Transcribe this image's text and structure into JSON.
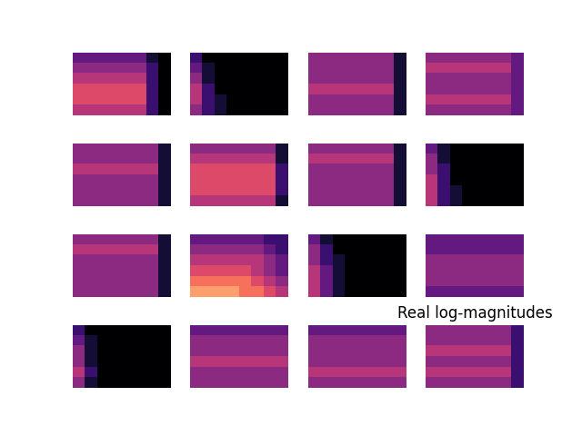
{
  "chart_data": [
    {
      "type": "heatmap",
      "tick_labels": false,
      "value_range": [
        0,
        10
      ],
      "cells": [
        [
          3,
          3,
          3,
          3,
          3,
          3,
          1,
          0
        ],
        [
          4,
          4,
          4,
          4,
          4,
          4,
          2,
          0
        ],
        [
          5,
          5,
          5,
          5,
          5,
          5,
          2,
          0
        ],
        [
          6,
          6,
          6,
          6,
          6,
          6,
          2,
          0
        ],
        [
          6,
          6,
          6,
          6,
          6,
          6,
          2,
          0
        ],
        [
          5,
          5,
          5,
          5,
          5,
          5,
          2,
          0
        ]
      ]
    },
    {
      "type": "heatmap",
      "tick_labels": false,
      "value_range": [
        0,
        10
      ],
      "cells": [
        [
          2,
          0,
          0,
          0,
          0,
          0,
          0,
          0
        ],
        [
          3,
          1,
          0,
          0,
          0,
          0,
          0,
          0
        ],
        [
          4,
          1,
          0,
          0,
          0,
          0,
          0,
          0
        ],
        [
          5,
          2,
          0,
          0,
          0,
          0,
          0,
          0
        ],
        [
          5,
          2,
          1,
          0,
          0,
          0,
          0,
          0
        ],
        [
          4,
          2,
          1,
          0,
          0,
          0,
          0,
          0
        ]
      ]
    },
    {
      "type": "heatmap",
      "tick_labels": false,
      "value_range": [
        0,
        10
      ],
      "cells": [
        [
          4,
          4,
          4,
          4,
          4,
          4,
          4,
          1
        ],
        [
          4,
          4,
          4,
          4,
          4,
          4,
          4,
          1
        ],
        [
          4,
          4,
          4,
          4,
          4,
          4,
          4,
          1
        ],
        [
          5,
          5,
          5,
          5,
          5,
          5,
          5,
          1
        ],
        [
          4,
          4,
          4,
          4,
          4,
          4,
          4,
          1
        ],
        [
          4,
          4,
          4,
          4,
          4,
          4,
          4,
          1
        ]
      ]
    },
    {
      "type": "heatmap",
      "tick_labels": false,
      "value_range": [
        0,
        10
      ],
      "cells": [
        [
          4,
          4,
          4,
          4,
          4,
          4,
          4,
          3
        ],
        [
          5,
          5,
          5,
          5,
          5,
          5,
          5,
          3
        ],
        [
          4,
          4,
          4,
          4,
          4,
          4,
          4,
          3
        ],
        [
          4,
          4,
          4,
          4,
          4,
          4,
          4,
          3
        ],
        [
          5,
          5,
          5,
          5,
          5,
          5,
          5,
          3
        ],
        [
          4,
          4,
          4,
          4,
          4,
          4,
          4,
          3
        ]
      ]
    },
    {
      "type": "heatmap",
      "tick_labels": false,
      "value_range": [
        0,
        10
      ],
      "cells": [
        [
          4,
          4,
          4,
          4,
          4,
          4,
          4,
          1
        ],
        [
          4,
          4,
          4,
          4,
          4,
          4,
          4,
          1
        ],
        [
          5,
          5,
          5,
          5,
          5,
          5,
          5,
          1
        ],
        [
          4,
          4,
          4,
          4,
          4,
          4,
          4,
          1
        ],
        [
          4,
          4,
          4,
          4,
          4,
          4,
          4,
          1
        ],
        [
          4,
          4,
          4,
          4,
          4,
          4,
          4,
          1
        ]
      ]
    },
    {
      "type": "heatmap",
      "tick_labels": false,
      "value_range": [
        0,
        10
      ],
      "cells": [
        [
          4,
          4,
          4,
          4,
          4,
          4,
          4,
          1
        ],
        [
          5,
          5,
          5,
          5,
          5,
          5,
          5,
          1
        ],
        [
          6,
          6,
          6,
          6,
          6,
          6,
          6,
          2
        ],
        [
          6,
          6,
          6,
          6,
          6,
          6,
          6,
          2
        ],
        [
          6,
          6,
          6,
          6,
          6,
          6,
          6,
          2
        ],
        [
          5,
          5,
          5,
          5,
          5,
          5,
          5,
          1
        ]
      ]
    },
    {
      "type": "heatmap",
      "tick_labels": false,
      "value_range": [
        0,
        10
      ],
      "cells": [
        [
          4,
          4,
          4,
          4,
          4,
          4,
          4,
          1
        ],
        [
          5,
          5,
          5,
          5,
          5,
          5,
          5,
          1
        ],
        [
          4,
          4,
          4,
          4,
          4,
          4,
          4,
          1
        ],
        [
          4,
          4,
          4,
          4,
          4,
          4,
          4,
          1
        ],
        [
          4,
          4,
          4,
          4,
          4,
          4,
          4,
          1
        ],
        [
          4,
          4,
          4,
          4,
          4,
          4,
          4,
          1
        ]
      ]
    },
    {
      "type": "heatmap",
      "tick_labels": false,
      "value_range": [
        0,
        10
      ],
      "cells": [
        [
          3,
          1,
          0,
          0,
          0,
          0,
          0,
          0
        ],
        [
          4,
          1,
          0,
          0,
          0,
          0,
          0,
          0
        ],
        [
          4,
          2,
          0,
          0,
          0,
          0,
          0,
          0
        ],
        [
          5,
          2,
          0,
          0,
          0,
          0,
          0,
          0
        ],
        [
          5,
          2,
          1,
          0,
          0,
          0,
          0,
          0
        ],
        [
          5,
          2,
          1,
          0,
          0,
          0,
          0,
          0
        ]
      ]
    },
    {
      "type": "heatmap",
      "tick_labels": false,
      "value_range": [
        0,
        10
      ],
      "cells": [
        [
          4,
          4,
          4,
          4,
          4,
          4,
          4,
          1
        ],
        [
          5,
          5,
          5,
          5,
          5,
          5,
          5,
          1
        ],
        [
          4,
          4,
          4,
          4,
          4,
          4,
          4,
          1
        ],
        [
          4,
          4,
          4,
          4,
          4,
          4,
          4,
          1
        ],
        [
          4,
          4,
          4,
          4,
          4,
          4,
          4,
          1
        ],
        [
          4,
          4,
          4,
          4,
          4,
          4,
          4,
          1
        ]
      ]
    },
    {
      "type": "heatmap",
      "tick_labels": false,
      "value_range": [
        0,
        10
      ],
      "cells": [
        [
          3,
          3,
          3,
          3,
          3,
          3,
          2,
          2
        ],
        [
          4,
          4,
          4,
          4,
          4,
          4,
          3,
          2
        ],
        [
          5,
          5,
          5,
          5,
          5,
          5,
          4,
          3
        ],
        [
          6,
          6,
          6,
          6,
          6,
          5,
          4,
          3
        ],
        [
          7,
          7,
          7,
          7,
          7,
          6,
          5,
          4
        ],
        [
          8,
          8,
          8,
          8,
          7,
          7,
          6,
          5
        ]
      ]
    },
    {
      "type": "heatmap",
      "tick_labels": false,
      "value_range": [
        0,
        10
      ],
      "cells": [
        [
          3,
          1,
          0,
          0,
          0,
          0,
          0,
          0
        ],
        [
          4,
          2,
          0,
          0,
          0,
          0,
          0,
          0
        ],
        [
          4,
          2,
          1,
          0,
          0,
          0,
          0,
          0
        ],
        [
          5,
          3,
          1,
          0,
          0,
          0,
          0,
          0
        ],
        [
          5,
          3,
          1,
          0,
          0,
          0,
          0,
          0
        ],
        [
          5,
          3,
          1,
          0,
          0,
          0,
          0,
          0
        ]
      ]
    },
    {
      "type": "heatmap",
      "tick_labels": false,
      "value_range": [
        0,
        10
      ],
      "cells": [
        [
          3,
          3,
          3,
          3,
          3,
          3,
          3,
          3
        ],
        [
          3,
          3,
          3,
          3,
          3,
          3,
          3,
          3
        ],
        [
          4,
          4,
          4,
          4,
          4,
          4,
          4,
          4
        ],
        [
          4,
          4,
          4,
          4,
          4,
          4,
          4,
          4
        ],
        [
          4,
          4,
          4,
          4,
          4,
          4,
          4,
          4
        ],
        [
          3,
          3,
          3,
          3,
          3,
          3,
          3,
          3
        ]
      ]
    },
    {
      "type": "heatmap",
      "tick_labels": false,
      "value_range": [
        0,
        10
      ],
      "cells": [
        [
          2,
          0,
          0,
          0,
          0,
          0,
          0,
          0
        ],
        [
          3,
          1,
          0,
          0,
          0,
          0,
          0,
          0
        ],
        [
          4,
          1,
          0,
          0,
          0,
          0,
          0,
          0
        ],
        [
          4,
          1,
          0,
          0,
          0,
          0,
          0,
          0
        ],
        [
          5,
          2,
          0,
          0,
          0,
          0,
          0,
          0
        ],
        [
          4,
          1,
          0,
          0,
          0,
          0,
          0,
          0
        ]
      ]
    },
    {
      "type": "heatmap",
      "tick_labels": false,
      "value_range": [
        0,
        10
      ],
      "cells": [
        [
          3,
          3,
          3,
          3,
          3,
          3,
          3,
          3
        ],
        [
          4,
          4,
          4,
          4,
          4,
          4,
          4,
          4
        ],
        [
          4,
          4,
          4,
          4,
          4,
          4,
          4,
          4
        ],
        [
          5,
          5,
          5,
          5,
          5,
          5,
          5,
          5
        ],
        [
          4,
          4,
          4,
          4,
          4,
          4,
          4,
          4
        ],
        [
          4,
          4,
          4,
          4,
          4,
          4,
          4,
          4
        ]
      ]
    },
    {
      "type": "heatmap",
      "tick_labels": false,
      "value_range": [
        0,
        10
      ],
      "cells": [
        [
          3,
          3,
          3,
          3,
          3,
          3,
          3,
          3
        ],
        [
          4,
          4,
          4,
          4,
          4,
          4,
          4,
          4
        ],
        [
          4,
          4,
          4,
          4,
          4,
          4,
          4,
          4
        ],
        [
          4,
          4,
          4,
          4,
          4,
          4,
          4,
          4
        ],
        [
          5,
          5,
          5,
          5,
          5,
          5,
          5,
          5
        ],
        [
          4,
          4,
          4,
          4,
          4,
          4,
          4,
          4
        ]
      ]
    },
    {
      "type": "heatmap",
      "title": "Real log-magnitudes",
      "tick_labels": false,
      "value_range": [
        0,
        10
      ],
      "cells": [
        [
          4,
          4,
          4,
          4,
          4,
          4,
          4,
          2
        ],
        [
          4,
          4,
          4,
          4,
          4,
          4,
          4,
          2
        ],
        [
          5,
          5,
          5,
          5,
          5,
          5,
          5,
          2
        ],
        [
          4,
          4,
          4,
          4,
          4,
          4,
          4,
          2
        ],
        [
          5,
          5,
          5,
          5,
          5,
          5,
          5,
          2
        ],
        [
          4,
          4,
          4,
          4,
          4,
          4,
          4,
          2
        ]
      ]
    }
  ]
}
